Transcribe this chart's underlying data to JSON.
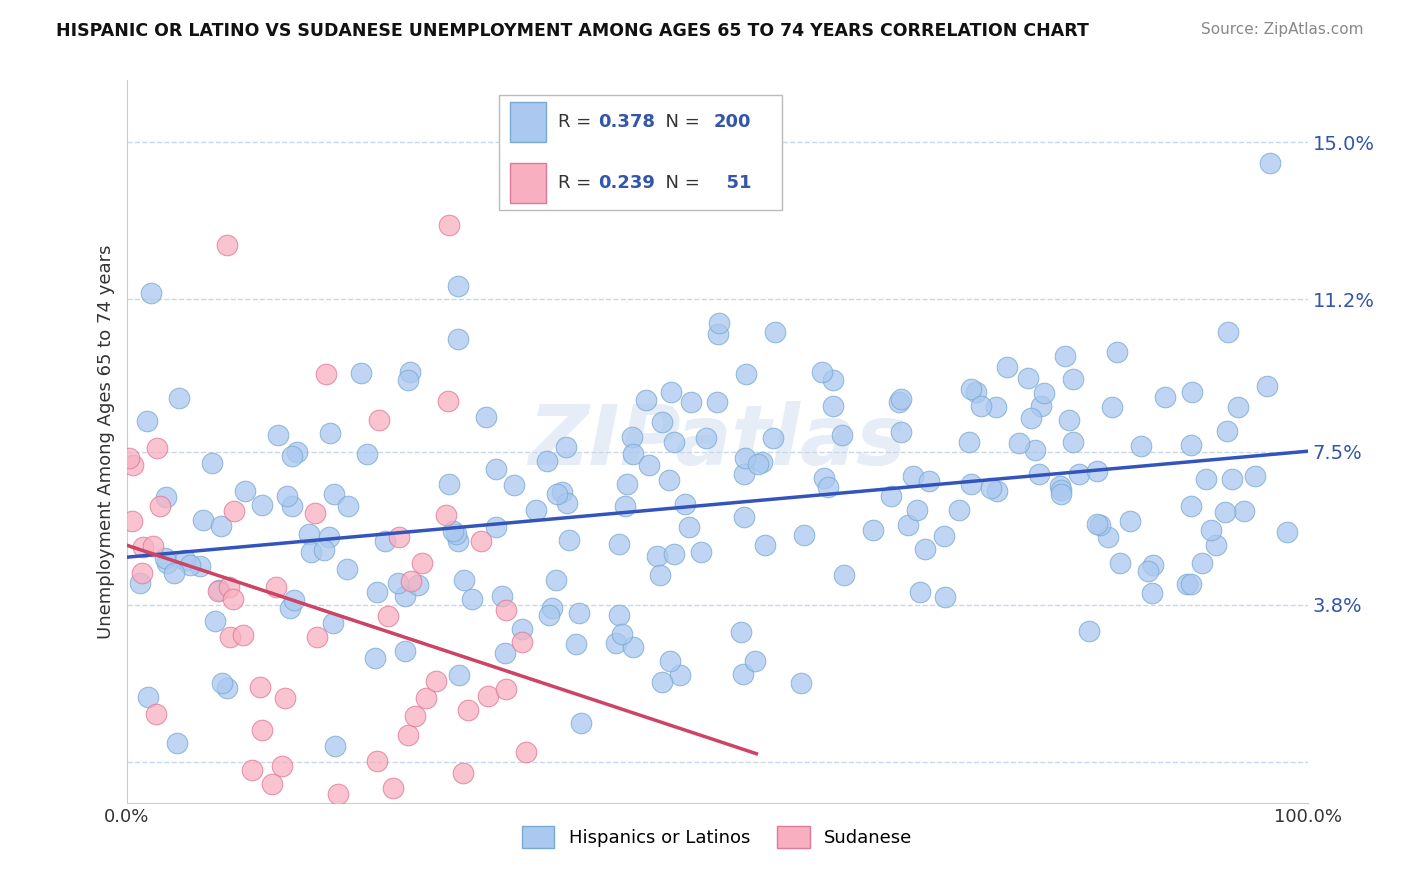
{
  "title": "HISPANIC OR LATINO VS SUDANESE UNEMPLOYMENT AMONG AGES 65 TO 74 YEARS CORRELATION CHART",
  "source": "Source: ZipAtlas.com",
  "ylabel": "Unemployment Among Ages 65 to 74 years",
  "xlim": [
    0,
    100
  ],
  "ylim": [
    -1.0,
    16.5
  ],
  "yticks": [
    0.0,
    3.8,
    7.5,
    11.2,
    15.0
  ],
  "yticklabels": [
    "",
    "3.8%",
    "7.5%",
    "11.2%",
    "15.0%"
  ],
  "blue_color": "#aac8f0",
  "blue_edge": "#7aaad0",
  "pink_color": "#f8b0c0",
  "pink_edge": "#e07898",
  "trendline_blue": "#3355bb",
  "trendline_pink": "#cc4466",
  "R_blue": 0.378,
  "N_blue": 200,
  "R_pink": 0.239,
  "N_pink": 51,
  "legend_label_blue": "Hispanics or Latinos",
  "legend_label_pink": "Sudanese",
  "background_color": "#ffffff",
  "grid_color": "#c8d8e8",
  "label_color": "#3355aa",
  "text_color": "#333333",
  "source_color": "#888888"
}
